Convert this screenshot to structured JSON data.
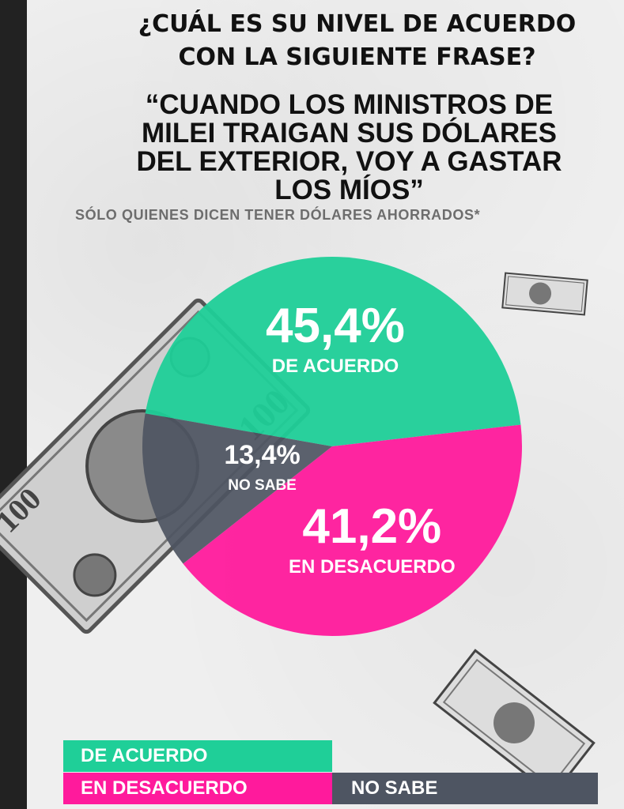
{
  "question": {
    "line1": "¿CUÁL ES SU NIVEL DE ACUERDO",
    "line2": "CON LA SIGUIENTE FRASE?"
  },
  "quote": {
    "line1": "“CUANDO LOS MINISTROS DE",
    "line2": "MILEI TRAIGAN SUS DÓLARES",
    "line3": "DEL EXTERIOR, VOY A GASTAR",
    "line4": "LOS MÍOS”"
  },
  "note": "SÓLO QUIENES DICEN TENER DÓLARES AHORRADOS*",
  "chart_data": {
    "type": "pie",
    "slices": [
      {
        "label": "DE ACUERDO",
        "value": 45.4,
        "value_text": "45,4%",
        "color": "#1fcf98"
      },
      {
        "label": "EN DESACUERDO",
        "value": 41.2,
        "value_text": "41,2%",
        "color": "#ff1a9c"
      },
      {
        "label": "NO SABE",
        "value": 13.4,
        "value_text": "13,4%",
        "color": "#4e5562"
      }
    ],
    "legend": [
      "DE ACUERDO",
      "EN DESACUERDO",
      "NO SABE"
    ]
  },
  "legend": {
    "agree": "DE ACUERDO",
    "disagree": "EN DESACUERDO",
    "nosabe": "NO SABE"
  }
}
